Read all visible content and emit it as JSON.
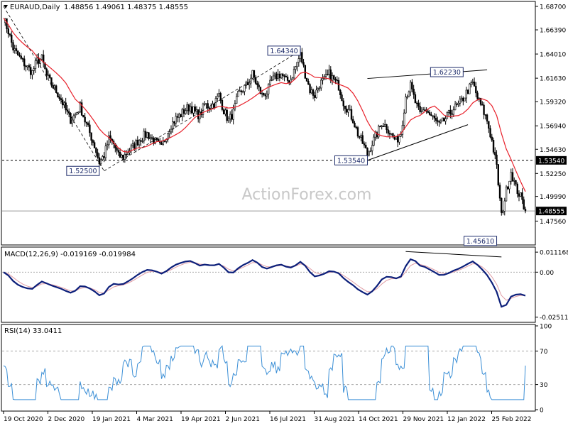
{
  "chart_data": {
    "type": "line",
    "header": {
      "symbol": "EURAUD,Daily",
      "ohlc": "1.48856 1.49061 1.48375 1.48555"
    },
    "watermark": "ActionForex.com",
    "x_dates": [
      "19 Oct 2020",
      "2 Dec 2020",
      "19 Jan 2021",
      "4 Mar 2021",
      "19 Apr 2021",
      "2 Jun 2021",
      "16 Jul 2021",
      "31 Aug 2021",
      "14 Oct 2021",
      "29 Nov 2021",
      "12 Jan 2022",
      "25 Feb 2022"
    ],
    "price_panel": {
      "ylim": [
        1.4535,
        1.6905
      ],
      "y_ticks": [
        "1.68700",
        "1.66390",
        "1.64010",
        "1.61630",
        "1.59320",
        "1.56940",
        "1.54630",
        "1.52250",
        "1.49990",
        "1.47560"
      ],
      "price_y_ticks": [
        1.687,
        1.6639,
        1.6401,
        1.6163,
        1.5932,
        1.5694,
        1.5463,
        1.5225,
        1.4999,
        1.4756
      ],
      "current_price": 1.48555,
      "current_label": "1.48555",
      "support_level": 1.5354,
      "support_label": "1.53540",
      "annotations": [
        {
          "label": "1.52500",
          "date_index": 20,
          "price": 1.525
        },
        {
          "label": "1.64340",
          "date_index": 62,
          "price": 1.6434
        },
        {
          "label": "1.53540",
          "date_index": 76,
          "price": 1.5354
        },
        {
          "label": "1.62230",
          "date_index": 96,
          "price": 1.6223
        },
        {
          "label": "1.45610",
          "date_index": 103,
          "price": 1.4561
        }
      ],
      "close_series": [
        1.6755,
        1.6625,
        1.6455,
        1.6385,
        1.6325,
        1.6268,
        1.6222,
        1.6335,
        1.6355,
        1.6185,
        1.6105,
        1.6035,
        1.5955,
        1.5845,
        1.5755,
        1.5805,
        1.5885,
        1.5745,
        1.5625,
        1.5495,
        1.5335,
        1.5405,
        1.5565,
        1.5515,
        1.5395,
        1.5385,
        1.5445,
        1.5485,
        1.5545,
        1.5585,
        1.5615,
        1.5565,
        1.5525,
        1.5475,
        1.5605,
        1.5705,
        1.5765,
        1.5805,
        1.5855,
        1.5885,
        1.5825,
        1.5795,
        1.5905,
        1.5885,
        1.5915,
        1.5995,
        1.5845,
        1.5745,
        1.5825,
        1.5995,
        1.6055,
        1.6105,
        1.6205,
        1.6085,
        1.5995,
        1.6025,
        1.6135,
        1.6185,
        1.6205,
        1.6135,
        1.6155,
        1.6275,
        1.6395,
        1.6205,
        1.6045,
        1.5995,
        1.6105,
        1.6145,
        1.6205,
        1.6145,
        1.6085,
        1.5925,
        1.5845,
        1.5755,
        1.5615,
        1.5525,
        1.5415,
        1.5525,
        1.5615,
        1.5725,
        1.5685,
        1.5605,
        1.5545,
        1.5625,
        1.5985,
        1.6085,
        1.5925,
        1.5805,
        1.5865,
        1.5805,
        1.5755,
        1.5695,
        1.5745,
        1.5805,
        1.5865,
        1.5895,
        1.5965,
        1.6045,
        1.6115,
        1.5965,
        1.5865,
        1.5745,
        1.5545,
        1.5285,
        1.4805,
        1.5055,
        1.5245,
        1.5085,
        1.4996,
        1.4856
      ]
    },
    "macd_panel": {
      "label": "MACD(12,26,9) -0.019169 -0.019984",
      "ylim": [
        -0.0272,
        0.0132
      ],
      "y_ticks": [
        "0.011168",
        "0.00",
        "-0.025117"
      ],
      "tick_values": [
        0.011168,
        0.0,
        -0.025117
      ]
    },
    "rsi_panel": {
      "label": "RSI(14) 33.0411",
      "ylim": [
        0,
        100
      ],
      "y_ticks": [
        "100",
        "70",
        "30",
        "0"
      ],
      "tick_values": [
        100,
        70,
        30,
        0
      ]
    },
    "colors": {
      "candles": "#000000",
      "moving_average": "#e8202a",
      "macd_line": "#0c1f7a",
      "signal_line": "#e09ca4",
      "rsi_line": "#3b8fd6",
      "trendlines": "#000000"
    }
  }
}
